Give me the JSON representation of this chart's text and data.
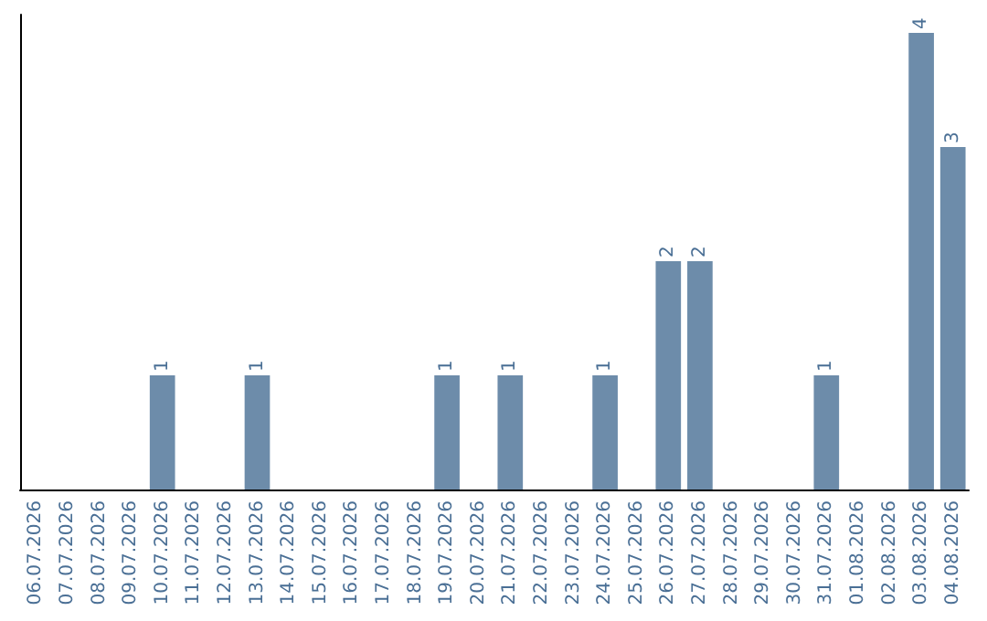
{
  "chart_data": {
    "type": "bar",
    "categories": [
      "06.07.2026",
      "07.07.2026",
      "08.07.2026",
      "09.07.2026",
      "10.07.2026",
      "11.07.2026",
      "12.07.2026",
      "13.07.2026",
      "14.07.2026",
      "15.07.2026",
      "16.07.2026",
      "17.07.2026",
      "18.07.2026",
      "19.07.2026",
      "20.07.2026",
      "21.07.2026",
      "22.07.2026",
      "23.07.2026",
      "24.07.2026",
      "25.07.2026",
      "26.07.2026",
      "27.07.2026",
      "28.07.2026",
      "29.07.2026",
      "30.07.2026",
      "31.07.2026",
      "01.08.2026",
      "02.08.2026",
      "03.08.2026",
      "04.08.2026"
    ],
    "values": [
      0,
      0,
      0,
      0,
      1,
      0,
      0,
      1,
      0,
      0,
      0,
      0,
      0,
      1,
      0,
      1,
      0,
      0,
      1,
      0,
      2,
      2,
      0,
      0,
      0,
      1,
      0,
      0,
      4,
      3
    ],
    "value_labels": [
      null,
      null,
      null,
      null,
      "1",
      null,
      null,
      "1",
      null,
      null,
      null,
      null,
      null,
      "1",
      null,
      "1",
      null,
      null,
      "1",
      null,
      "2",
      "2",
      null,
      null,
      null,
      "1",
      null,
      null,
      "4",
      "3"
    ],
    "color": "#6d8caa",
    "grid": false
  }
}
